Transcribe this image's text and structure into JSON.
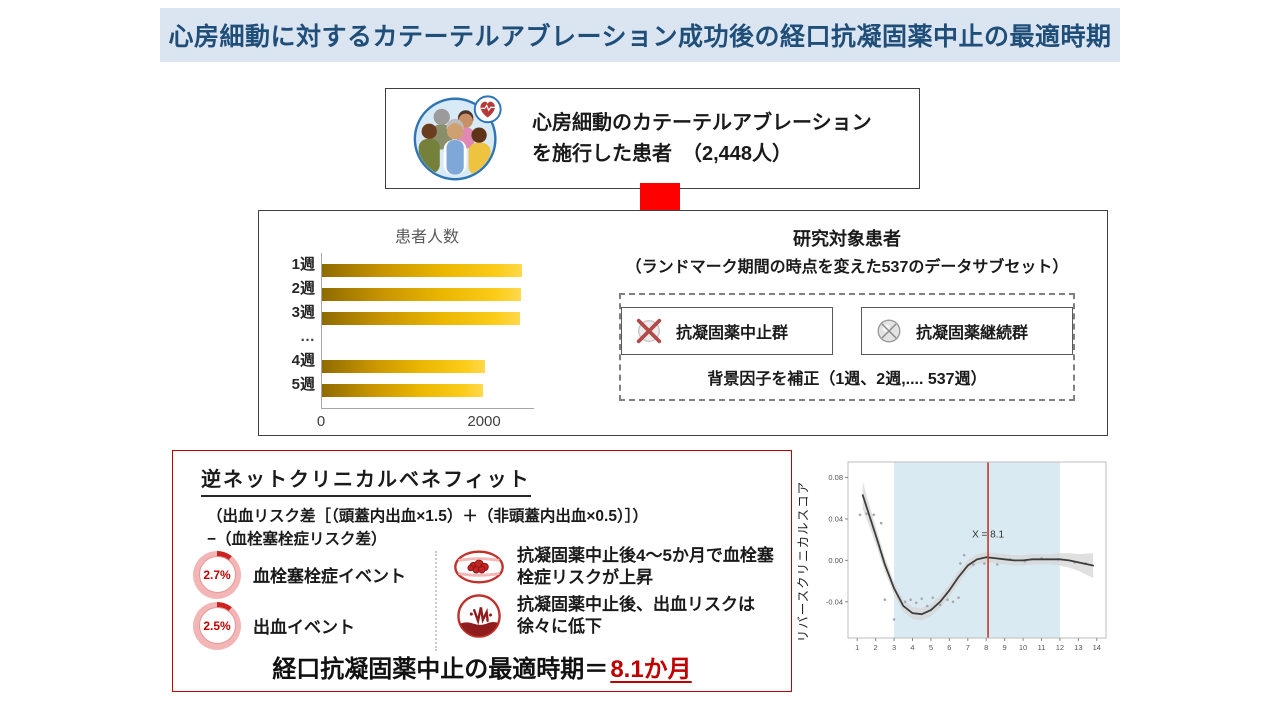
{
  "title_bar": {
    "text": "心房細動に対するカテーテルアブレーション成功後の経口抗凝固薬中止の最適時期"
  },
  "patient_box": {
    "line1": "心房細動のカテーテルアブレーション",
    "line2": "を施行した患者　（2,448人）",
    "icon": "patients-group-icon",
    "badge_icon": "afib-heart-icon"
  },
  "study_box": {
    "heading": "研究対象患者",
    "subheading": "（ランドマーク期間の時点を変えた537のデータサブセット）",
    "group1": {
      "label": "抗凝固薬中止群",
      "icon": "pill-crossed-red-icon"
    },
    "group2": {
      "label": "抗凝固薬継続群",
      "icon": "pill-gray-icon"
    },
    "adjustment_note": "背景因子を補正（1週、2週,.... 537週）"
  },
  "benefit_box": {
    "heading": "逆ネットクリニカルベネフィット",
    "formula_line1": "（出血リスク差［（頭蓋内出血×1.5）＋（非頭蓋内出血×0.5）］）",
    "formula_line2": "−（血栓塞栓症リスク差）",
    "stats": [
      {
        "value": "2.7%",
        "label": "血栓塞栓症イベント"
      },
      {
        "value": "2.5%",
        "label": "出血イベント"
      }
    ],
    "notes": [
      {
        "icon": "thrombus-icon",
        "text": "抗凝固薬中止後4～5か月で血栓塞栓症リスクが上昇"
      },
      {
        "icon": "bleeding-icon",
        "text": "抗凝固薬中止後、出血リスクは徐々に低下"
      }
    ],
    "conclusion_label": "経口抗凝固薬中止の最適時期＝",
    "conclusion_value": "8.1か月"
  },
  "chart_data": [
    {
      "type": "bar",
      "orientation": "horizontal",
      "title": "患者人数",
      "categories": [
        "1週",
        "2週",
        "3週",
        "…",
        "4週",
        "5週"
      ],
      "values": [
        2448,
        2440,
        2430,
        null,
        2005,
        1975
      ],
      "xlabel": "",
      "ylabel": "",
      "xlim": [
        0,
        2600
      ],
      "xticks": [
        0,
        2000
      ],
      "bar_color_gradient": [
        "#8f6b00",
        "#ffd84d"
      ]
    },
    {
      "type": "line",
      "title": "",
      "xlabel": "",
      "ylabel": "リバースクリニカルスコア",
      "xlim": [
        0.5,
        14.5
      ],
      "ylim": [
        -0.075,
        0.095
      ],
      "xticks": [
        1,
        2,
        3,
        4,
        5,
        6,
        7,
        8,
        9,
        10,
        11,
        12,
        13,
        14
      ],
      "yticks": [
        0.08,
        0.04,
        0.0,
        -0.04
      ],
      "shaded_region": [
        3,
        12
      ],
      "region_color": "#daeaf3",
      "vline_x": 8.1,
      "vline_color": "#c0392b",
      "annotation": "X = 8.1",
      "x": [
        1.3,
        1.7,
        2.1,
        2.5,
        3,
        3.5,
        4,
        4.5,
        5,
        5.5,
        6,
        6.5,
        7,
        7.5,
        8,
        8.5,
        9,
        9.5,
        10,
        10.5,
        11,
        11.5,
        12,
        12.5,
        13,
        13.8
      ],
      "y": [
        0.063,
        0.041,
        0.019,
        -0.004,
        -0.027,
        -0.044,
        -0.051,
        -0.052,
        -0.048,
        -0.04,
        -0.029,
        -0.016,
        -0.005,
        0.001,
        0.003,
        0.002,
        0.001,
        0.0,
        0.0,
        0.001,
        0.001,
        0.001,
        0.001,
        0.0,
        -0.002,
        -0.005
      ],
      "band_halfwidth": [
        0.013,
        0.01,
        0.008,
        0.007,
        0.006,
        0.006,
        0.006,
        0.006,
        0.006,
        0.006,
        0.006,
        0.006,
        0.005,
        0.005,
        0.005,
        0.005,
        0.005,
        0.005,
        0.005,
        0.005,
        0.005,
        0.005,
        0.006,
        0.007,
        0.008,
        0.012
      ],
      "scatter": [
        [
          1.15,
          0.044
        ],
        [
          1.5,
          0.045
        ],
        [
          1.9,
          0.044
        ],
        [
          2.3,
          0.036
        ],
        [
          2.5,
          -0.038
        ],
        [
          3.0,
          -0.057
        ],
        [
          3.6,
          -0.04
        ],
        [
          3.9,
          -0.038
        ],
        [
          4.2,
          -0.041
        ],
        [
          4.5,
          -0.037
        ],
        [
          4.8,
          -0.044
        ],
        [
          5.1,
          -0.036
        ],
        [
          5.5,
          -0.043
        ],
        [
          5.9,
          -0.038
        ],
        [
          6.2,
          -0.04
        ],
        [
          6.5,
          -0.036
        ],
        [
          6.6,
          -0.003
        ],
        [
          6.8,
          0.005
        ],
        [
          7.3,
          -0.004
        ],
        [
          7.9,
          -0.003
        ],
        [
          8.6,
          -0.004
        ],
        [
          9.3,
          0.001
        ],
        [
          10.1,
          -0.001
        ],
        [
          11.0,
          0.002
        ],
        [
          11.9,
          0.001
        ],
        [
          12.8,
          -0.002
        ],
        [
          13.4,
          -0.003
        ]
      ]
    }
  ],
  "colors": {
    "title_bg": "#dbe5f1",
    "title_text": "#1f4e79",
    "arrow_red": "#fe0000",
    "benefit_border_red": "#c00000",
    "bar_gold_dark": "#8f6b00",
    "bar_gold_light": "#ffd84d",
    "region_blue": "#daeaf3"
  }
}
